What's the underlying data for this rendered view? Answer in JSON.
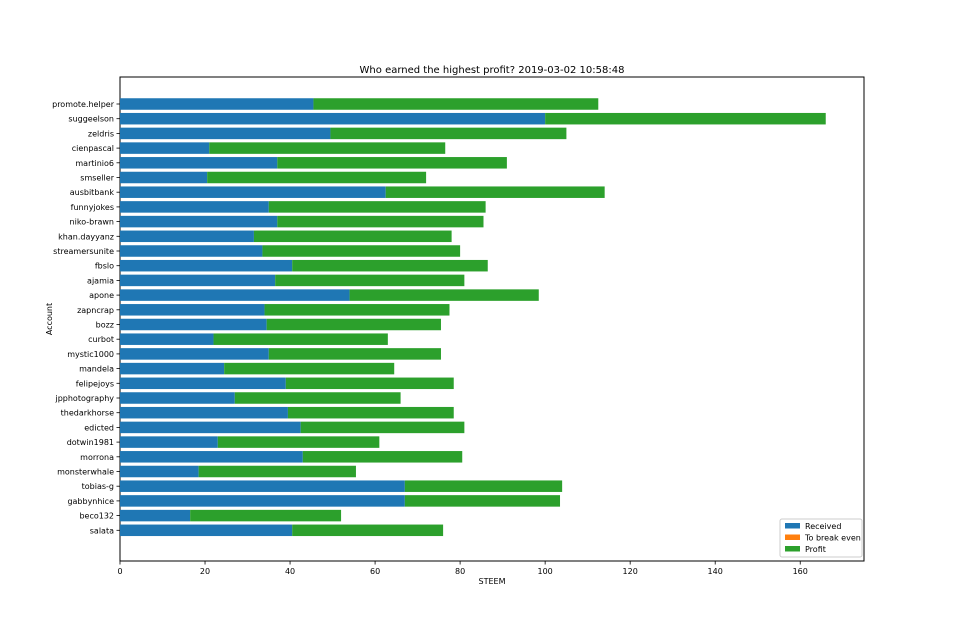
{
  "chart_data": {
    "type": "bar",
    "orientation": "horizontal",
    "stacked": true,
    "title": "Who earned the highest profit? 2019-03-02 10:58:48",
    "xlabel": "STEEM",
    "ylabel": "Account",
    "xlim": [
      0,
      175
    ],
    "xticks": [
      0,
      20,
      40,
      60,
      80,
      100,
      120,
      140,
      160
    ],
    "grid": false,
    "legend_position": "bottom-right",
    "categories": [
      "promote.helper",
      "suggeelson",
      "zeldris",
      "cienpascal",
      "martinio6",
      "smseller",
      "ausbitbank",
      "funnyjokes",
      "niko-brawn",
      "khan.dayyanz",
      "streamersunite",
      "fbslo",
      "ajamia",
      "apone",
      "zapncrap",
      "bozz",
      "curbot",
      "mystic1000",
      "mandela",
      "felipejoys",
      "jpphotography",
      "thedarkhorse",
      "edicted",
      "dotwin1981",
      "morrona",
      "monsterwhale",
      "tobias-g",
      "gabbynhice",
      "beco132",
      "salata"
    ],
    "series": [
      {
        "name": "Received",
        "color": "#1f77b4",
        "values": [
          45.5,
          100,
          49.5,
          21,
          37,
          20.5,
          62.5,
          35,
          37,
          31.5,
          33.5,
          40.5,
          36.5,
          54,
          34,
          34.5,
          22,
          35,
          24.5,
          39,
          27,
          39.5,
          42.5,
          23,
          43,
          18.5,
          67,
          67,
          16.5,
          40.5
        ]
      },
      {
        "name": "To break even",
        "color": "#ff7f0e",
        "values": [
          0,
          0,
          0,
          0,
          0,
          0,
          0,
          0,
          0,
          0,
          0,
          0,
          0,
          0,
          0,
          0,
          0,
          0,
          0,
          0,
          0,
          0,
          0,
          0,
          0,
          0,
          0,
          0,
          0,
          0
        ]
      },
      {
        "name": "Profit",
        "color": "#2ca02c",
        "values": [
          67,
          66,
          55.5,
          55.5,
          54,
          51.5,
          51.5,
          51,
          48.5,
          46.5,
          46.5,
          46,
          44.5,
          44.5,
          43.5,
          41,
          41,
          40.5,
          40,
          39.5,
          39,
          39,
          38.5,
          38,
          37.5,
          37,
          37,
          36.5,
          35.5,
          35.5
        ]
      }
    ]
  }
}
